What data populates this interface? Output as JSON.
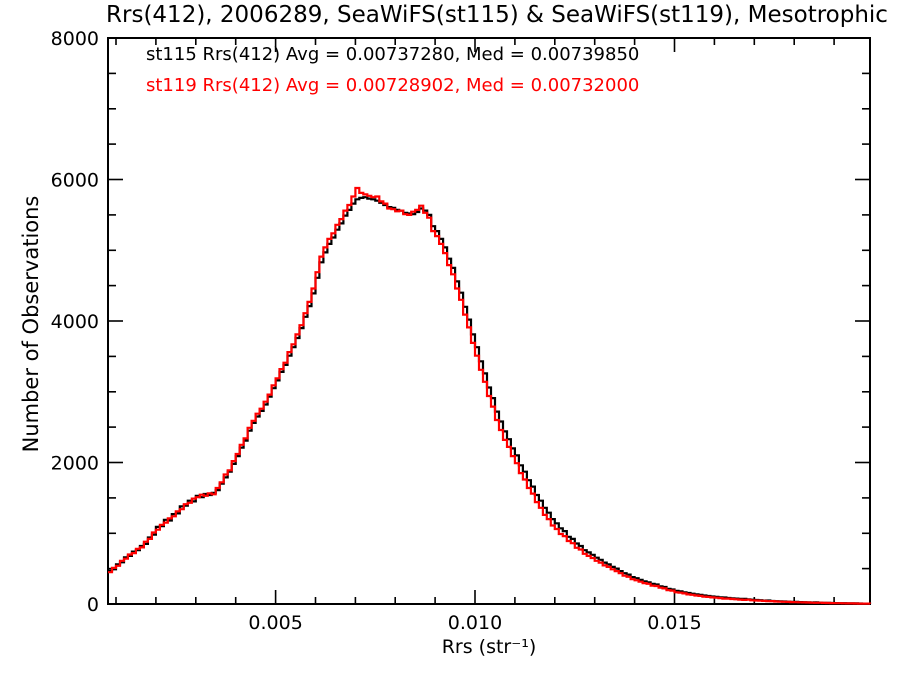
{
  "chart_data": {
    "type": "histogram-step",
    "title": "Rrs(412), 2006289, SeaWiFS(st115) & SeaWiFS(st119), Mesotrophic",
    "xlabel": "Rrs (str⁻¹)",
    "ylabel": "Number of Observations",
    "xlim": [
      0.0008,
      0.0199
    ],
    "ylim": [
      0,
      8000
    ],
    "grid": false,
    "legend_position": "top-left-inside",
    "x_ticks": {
      "minor_step": 0.001,
      "major": [
        {
          "v": 0.005,
          "label": "0.005"
        },
        {
          "v": 0.01,
          "label": "0.010"
        },
        {
          "v": 0.015,
          "label": "0.015"
        }
      ]
    },
    "y_ticks": {
      "minor_step": 500,
      "major": [
        {
          "v": 0,
          "label": "0"
        },
        {
          "v": 2000,
          "label": "2000"
        },
        {
          "v": 4000,
          "label": "4000"
        },
        {
          "v": 6000,
          "label": "6000"
        },
        {
          "v": 8000,
          "label": "8000"
        }
      ]
    },
    "legend": [
      {
        "text": "st115 Rrs(412) Avg = 0.00737280, Med = 0.00739850",
        "color": "#000000"
      },
      {
        "text": "st119 Rrs(412) Avg = 0.00728902, Med = 0.00732000",
        "color": "#ff0000"
      }
    ],
    "bins": {
      "x_start": 0.0008,
      "x_step": 0.0001,
      "count": 192
    },
    "series": [
      {
        "name": "st115",
        "color": "#000000",
        "values": [
          470,
          490,
          560,
          590,
          660,
          680,
          740,
          760,
          820,
          850,
          940,
          980,
          1090,
          1100,
          1190,
          1180,
          1270,
          1280,
          1380,
          1390,
          1460,
          1450,
          1530,
          1510,
          1555,
          1540,
          1570,
          1610,
          1700,
          1790,
          1870,
          1980,
          2090,
          2210,
          2310,
          2450,
          2560,
          2650,
          2730,
          2820,
          2930,
          3050,
          3160,
          3280,
          3380,
          3510,
          3630,
          3760,
          3900,
          4060,
          4210,
          4390,
          4610,
          4830,
          4970,
          5090,
          5180,
          5290,
          5380,
          5490,
          5570,
          5660,
          5720,
          5740,
          5750,
          5730,
          5720,
          5700,
          5670,
          5640,
          5610,
          5600,
          5570,
          5560,
          5530,
          5520,
          5510,
          5540,
          5590,
          5560,
          5500,
          5340,
          5270,
          5160,
          5040,
          4880,
          4750,
          4560,
          4400,
          4200,
          4020,
          3810,
          3630,
          3430,
          3260,
          3060,
          2910,
          2720,
          2580,
          2440,
          2330,
          2200,
          2100,
          1960,
          1870,
          1750,
          1660,
          1540,
          1460,
          1360,
          1290,
          1200,
          1140,
          1070,
          1030,
          950,
          920,
          855,
          820,
          760,
          730,
          695,
          655,
          625,
          585,
          560,
          525,
          500,
          465,
          435,
          415,
          380,
          365,
          340,
          320,
          305,
          285,
          275,
          250,
          240,
          215,
          205,
          185,
          180,
          165,
          155,
          145,
          135,
          128,
          120,
          113,
          106,
          100,
          95,
          92,
          85,
          80,
          76,
          72,
          74,
          65,
          61,
          57,
          54,
          48,
          50,
          43,
          40,
          38,
          35,
          33,
          31,
          29,
          27,
          25,
          23,
          21,
          22,
          18,
          17,
          16,
          14,
          13,
          12,
          11,
          10,
          9,
          8,
          7,
          6,
          5,
          4
        ]
      },
      {
        "name": "st119",
        "color": "#ff0000",
        "values": [
          450,
          510,
          540,
          610,
          640,
          700,
          720,
          780,
          800,
          880,
          920,
          1010,
          1050,
          1120,
          1150,
          1210,
          1240,
          1310,
          1340,
          1410,
          1430,
          1490,
          1510,
          1545,
          1530,
          1565,
          1550,
          1640,
          1720,
          1830,
          1890,
          2020,
          2120,
          2250,
          2340,
          2490,
          2590,
          2690,
          2760,
          2860,
          2960,
          3090,
          3190,
          3320,
          3410,
          3560,
          3670,
          3810,
          3940,
          4110,
          4270,
          4460,
          4690,
          4910,
          5040,
          5160,
          5240,
          5360,
          5440,
          5560,
          5640,
          5760,
          5880,
          5810,
          5790,
          5770,
          5750,
          5760,
          5690,
          5660,
          5590,
          5580,
          5550,
          5560,
          5510,
          5500,
          5545,
          5570,
          5630,
          5530,
          5460,
          5270,
          5200,
          5090,
          4960,
          4790,
          4660,
          4460,
          4300,
          4090,
          3910,
          3690,
          3510,
          3310,
          3140,
          2940,
          2790,
          2600,
          2460,
          2320,
          2220,
          2090,
          1990,
          1850,
          1760,
          1640,
          1560,
          1440,
          1360,
          1260,
          1200,
          1110,
          1060,
          990,
          960,
          890,
          860,
          795,
          770,
          710,
          680,
          650,
          610,
          585,
          545,
          525,
          490,
          465,
          435,
          400,
          385,
          350,
          335,
          315,
          295,
          285,
          260,
          255,
          230,
          220,
          195,
          190,
          165,
          160,
          150,
          135,
          130,
          120,
          115,
          105,
          100,
          93,
          89,
          83,
          77,
          76,
          70,
          66,
          62,
          58,
          61,
          53,
          50,
          46,
          44,
          39,
          41,
          35,
          33,
          31,
          29,
          27,
          26,
          24,
          22,
          21,
          19,
          17,
          18,
          15,
          14,
          13,
          12,
          11,
          10,
          9,
          8,
          7,
          6,
          5,
          5,
          4
        ]
      }
    ]
  },
  "colors": {
    "background": "#ffffff",
    "axis": "#000000"
  }
}
